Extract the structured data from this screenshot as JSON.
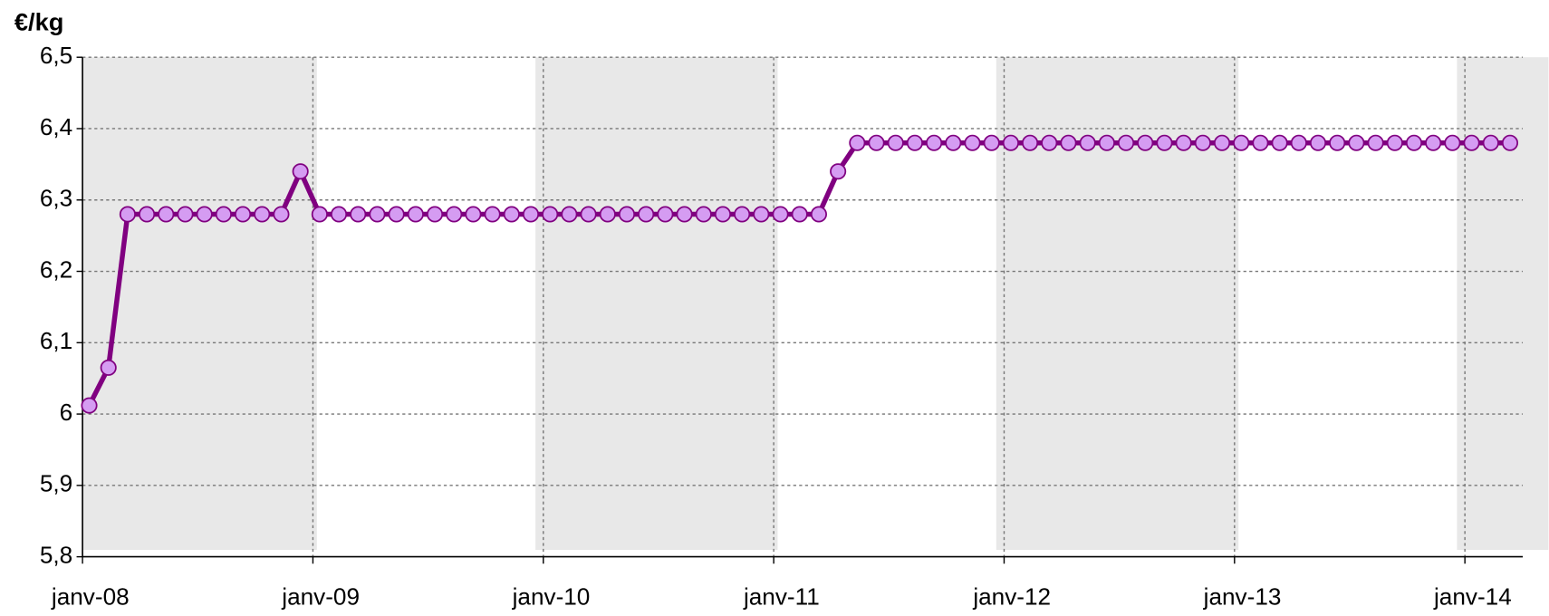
{
  "chart_data": {
    "type": "line",
    "title": "€/kg",
    "categories": [
      "janv-08",
      null,
      null,
      null,
      null,
      null,
      null,
      null,
      null,
      null,
      null,
      null,
      "janv-09",
      null,
      null,
      null,
      null,
      null,
      null,
      null,
      null,
      null,
      null,
      null,
      "janv-10",
      null,
      null,
      null,
      null,
      null,
      null,
      null,
      null,
      null,
      null,
      null,
      "janv-11",
      null,
      null,
      null,
      null,
      null,
      null,
      null,
      null,
      null,
      null,
      null,
      "janv-12",
      null,
      null,
      null,
      null,
      null,
      null,
      null,
      null,
      null,
      null,
      null,
      "janv-13",
      null,
      null,
      null,
      null,
      null,
      null,
      null,
      null,
      null,
      null,
      null,
      "janv-14",
      null,
      null
    ],
    "series": [
      {
        "name": "€/kg",
        "color": "#800080",
        "marker_color": "#d59cf2",
        "values": [
          6.012,
          6.065,
          6.28,
          6.28,
          6.28,
          6.28,
          6.28,
          6.28,
          6.28,
          6.28,
          6.28,
          6.34,
          6.28,
          6.28,
          6.28,
          6.28,
          6.28,
          6.28,
          6.28,
          6.28,
          6.28,
          6.28,
          6.28,
          6.28,
          6.28,
          6.28,
          6.28,
          6.28,
          6.28,
          6.28,
          6.28,
          6.28,
          6.28,
          6.28,
          6.28,
          6.28,
          6.28,
          6.28,
          6.28,
          6.34,
          6.38,
          6.38,
          6.38,
          6.38,
          6.38,
          6.38,
          6.38,
          6.38,
          6.38,
          6.38,
          6.38,
          6.38,
          6.38,
          6.38,
          6.38,
          6.38,
          6.38,
          6.38,
          6.38,
          6.38,
          6.38,
          6.38,
          6.38,
          6.38,
          6.38,
          6.38,
          6.38,
          6.38,
          6.38,
          6.38,
          6.38,
          6.38,
          6.38,
          6.38,
          6.38
        ]
      }
    ],
    "ylim": [
      5.8,
      6.5
    ],
    "yticks": [
      {
        "value": 5.8,
        "label": "5,8"
      },
      {
        "value": 5.9,
        "label": "5,9"
      },
      6,
      {
        "value": 6.1,
        "label": "6,1"
      },
      {
        "value": 6.2,
        "label": "6,2"
      },
      {
        "value": 6.3,
        "label": "6,3"
      },
      {
        "value": 6.4,
        "label": "6,4"
      },
      {
        "value": 6.5,
        "label": "6,5"
      }
    ],
    "grid": true,
    "band_color": "#e8e8e8"
  }
}
